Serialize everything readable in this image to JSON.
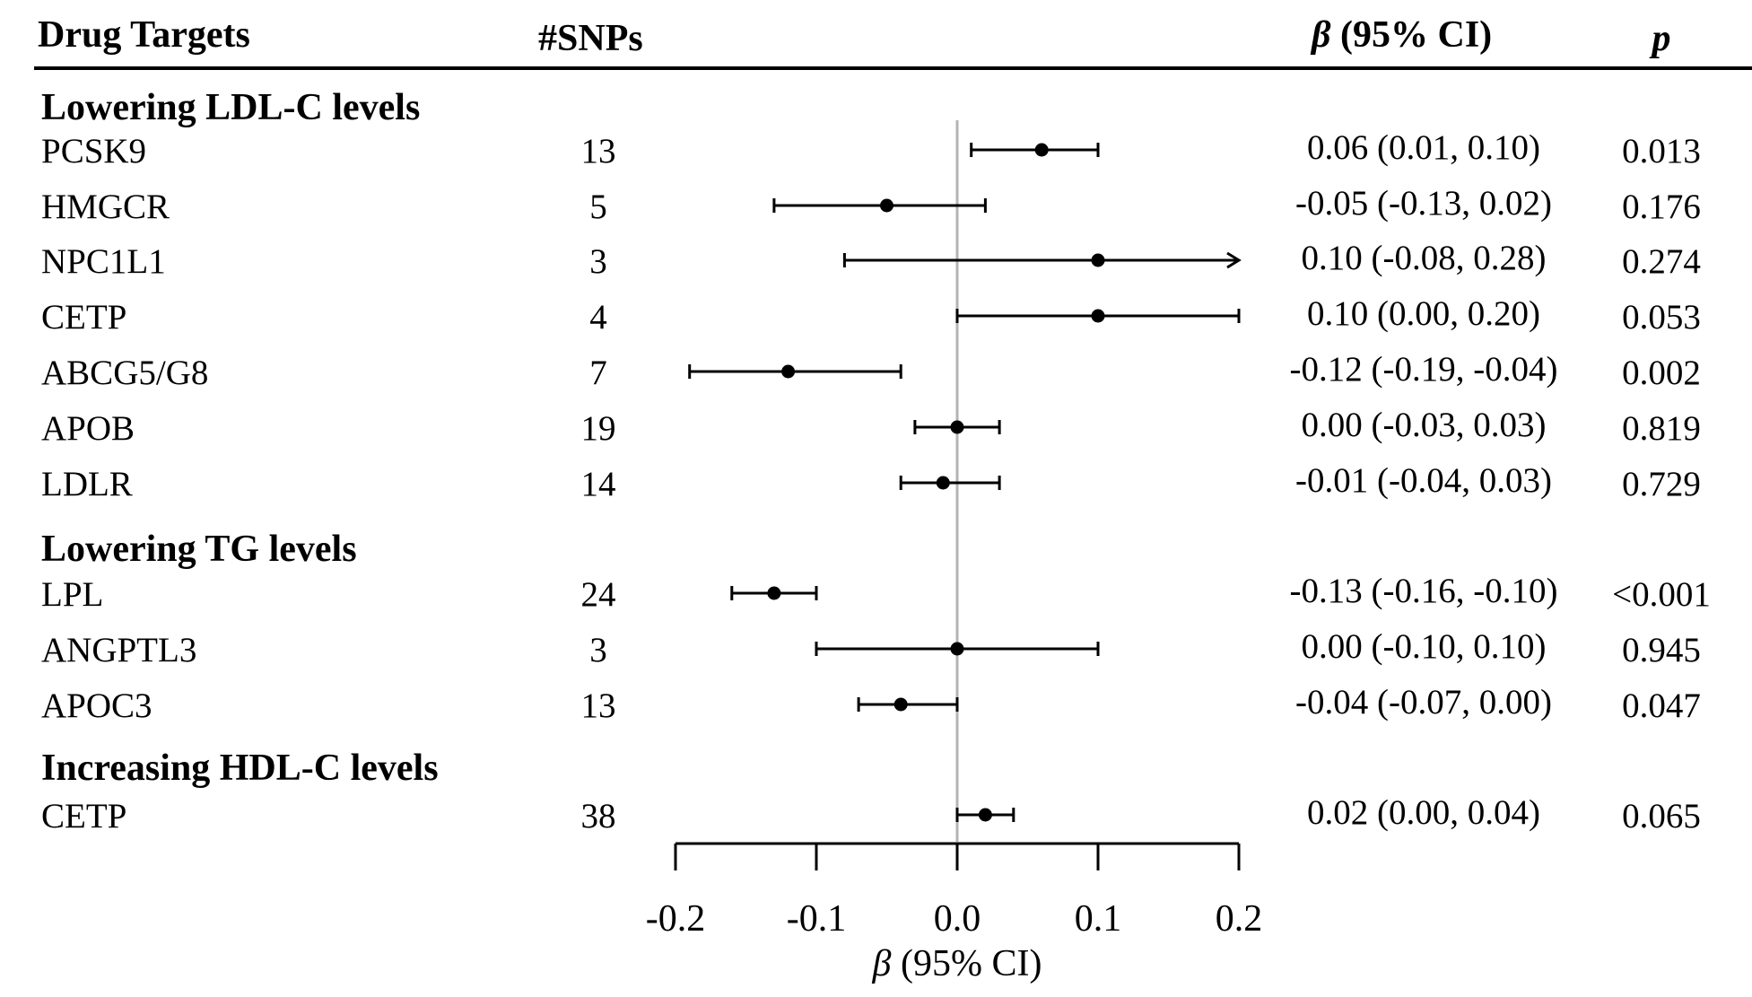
{
  "chart_data": {
    "type": "forest",
    "headers": {
      "targets": "Drug Targets",
      "snps": "#SNPs",
      "ci": "β (95% CI)",
      "ci_beta": "β",
      "ci_rest": " (95% CI)",
      "p": "p"
    },
    "xlabel": "β (95% CI)",
    "xlabel_beta": "β",
    "xlabel_rest": " (95% CI)",
    "xlim": [
      -0.2,
      0.2
    ],
    "xticks": [
      -0.2,
      -0.1,
      0.0,
      0.1,
      0.2
    ],
    "xtick_labels": [
      "-0.2",
      "-0.1",
      "0.0",
      "0.1",
      "0.2"
    ],
    "reference_line": 0.0,
    "groups": [
      {
        "title": "Lowering LDL-C levels",
        "rows": [
          {
            "target": "PCSK9",
            "snps": "13",
            "beta": 0.06,
            "lower": 0.01,
            "upper": 0.1,
            "ci_text": "0.06 (0.01, 0.10)",
            "p": "0.013",
            "truncated_upper": false
          },
          {
            "target": "HMGCR",
            "snps": "5",
            "beta": -0.05,
            "lower": -0.13,
            "upper": 0.02,
            "ci_text": "-0.05 (-0.13, 0.02)",
            "p": "0.176",
            "truncated_upper": false
          },
          {
            "target": "NPC1L1",
            "snps": "3",
            "beta": 0.1,
            "lower": -0.08,
            "upper": 0.28,
            "ci_text": "0.10 (-0.08, 0.28)",
            "p": "0.274",
            "truncated_upper": true
          },
          {
            "target": "CETP",
            "snps": "4",
            "beta": 0.1,
            "lower": 0.0,
            "upper": 0.2,
            "ci_text": "0.10 (0.00, 0.20)",
            "p": "0.053",
            "truncated_upper": false
          },
          {
            "target": "ABCG5/G8",
            "snps": "7",
            "beta": -0.12,
            "lower": -0.19,
            "upper": -0.04,
            "ci_text": "-0.12 (-0.19, -0.04)",
            "p": "0.002",
            "truncated_upper": false
          },
          {
            "target": "APOB",
            "snps": "19",
            "beta": 0.0,
            "lower": -0.03,
            "upper": 0.03,
            "ci_text": "0.00 (-0.03, 0.03)",
            "p": "0.819",
            "truncated_upper": false
          },
          {
            "target": "LDLR",
            "snps": "14",
            "beta": -0.01,
            "lower": -0.04,
            "upper": 0.03,
            "ci_text": "-0.01 (-0.04, 0.03)",
            "p": "0.729",
            "truncated_upper": false
          }
        ]
      },
      {
        "title": "Lowering TG levels",
        "rows": [
          {
            "target": "LPL",
            "snps": "24",
            "beta": -0.13,
            "lower": -0.16,
            "upper": -0.1,
            "ci_text": "-0.13 (-0.16, -0.10)",
            "p": "<0.001",
            "truncated_upper": false
          },
          {
            "target": "ANGPTL3",
            "snps": "3",
            "beta": 0.0,
            "lower": -0.1,
            "upper": 0.1,
            "ci_text": "0.00 (-0.10, 0.10)",
            "p": "0.945",
            "truncated_upper": false
          },
          {
            "target": "APOC3",
            "snps": "13",
            "beta": -0.04,
            "lower": -0.07,
            "upper": 0.0,
            "ci_text": "-0.04 (-0.07, 0.00)",
            "p": "0.047",
            "truncated_upper": false
          }
        ]
      },
      {
        "title": "Increasing HDL-C levels",
        "rows": [
          {
            "target": "CETP",
            "snps": "38",
            "beta": 0.02,
            "lower": 0.0,
            "upper": 0.04,
            "ci_text": "0.02 (0.00, 0.04)",
            "p": "0.065",
            "truncated_upper": false
          }
        ]
      }
    ],
    "colors": {
      "marker": "#000000",
      "ref_line": "#b4b4b4",
      "text": "#000000"
    }
  }
}
